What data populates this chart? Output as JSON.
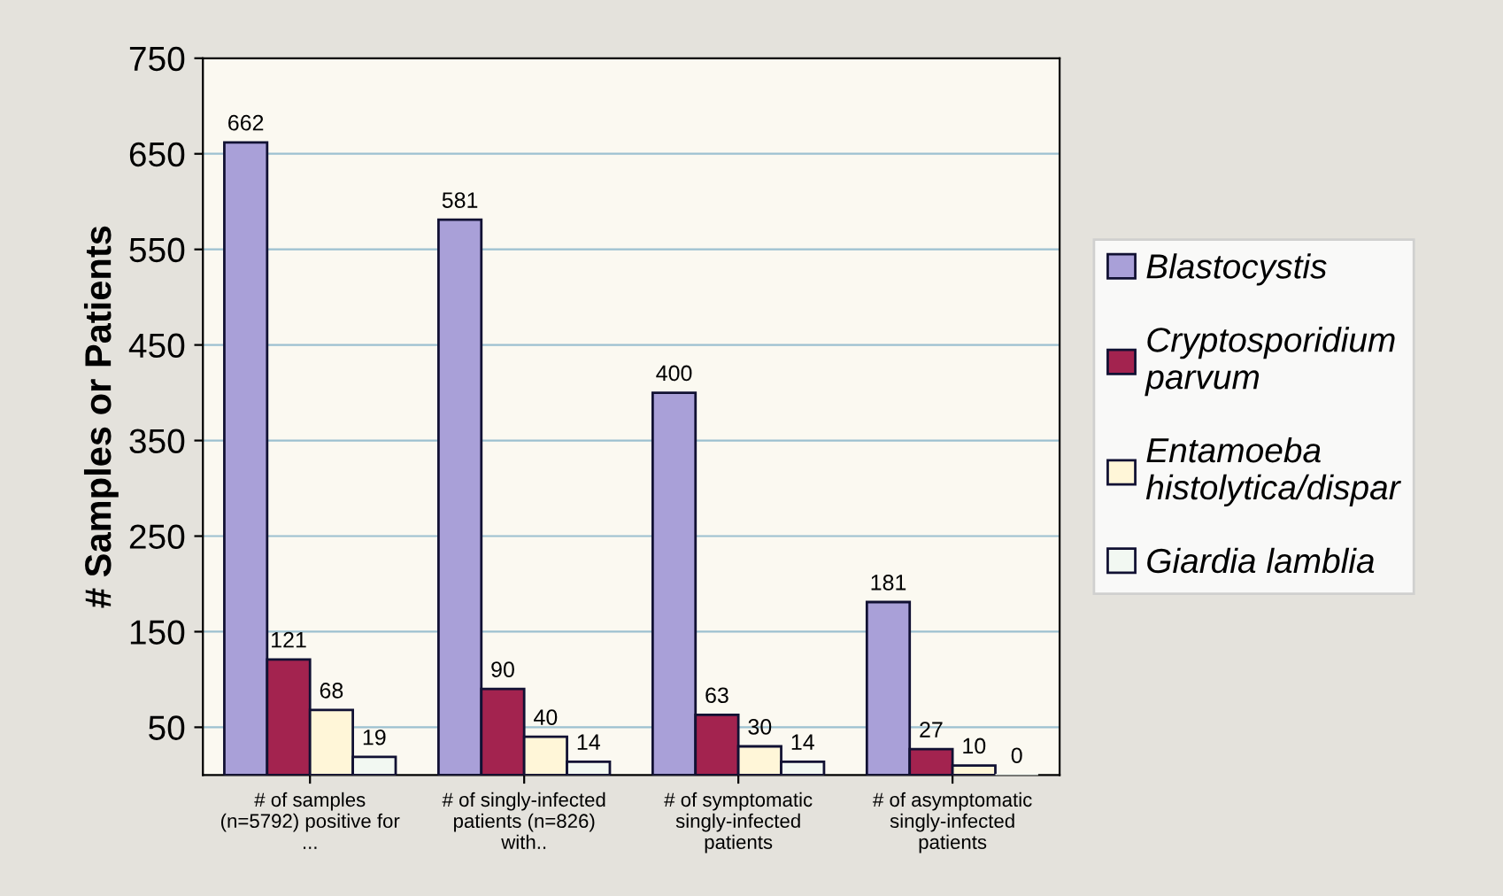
{
  "chart_data": {
    "type": "bar",
    "ylabel": "# Samples or Patients",
    "categories": [
      "# of samples\n(n=5792) positive for\n...",
      "# of singly-infected\npatients (n=826)\nwith..",
      "# of symptomatic\nsingly-infected\npatients",
      "# of asymptomatic\nsingly-infected\npatients"
    ],
    "series": [
      {
        "name": "Blastocystis",
        "color": "#a9a0d8",
        "values": [
          662,
          581,
          400,
          181
        ]
      },
      {
        "name": "Cryptosporidium\nparvum",
        "color": "#a3234f",
        "values": [
          121,
          90,
          63,
          27
        ]
      },
      {
        "name": "Entamoeba\nhistolytica/dispar",
        "color": "#fff6d8",
        "values": [
          68,
          40,
          30,
          10
        ]
      },
      {
        "name": "Giardia lamblia",
        "color": "#f2f8f2",
        "values": [
          19,
          14,
          14,
          0
        ]
      }
    ],
    "ylim": [
      0,
      750
    ],
    "yticks": [
      50,
      150,
      250,
      350,
      450,
      550,
      650,
      750
    ],
    "grid": "y",
    "legend": "right",
    "data_labels": true
  }
}
